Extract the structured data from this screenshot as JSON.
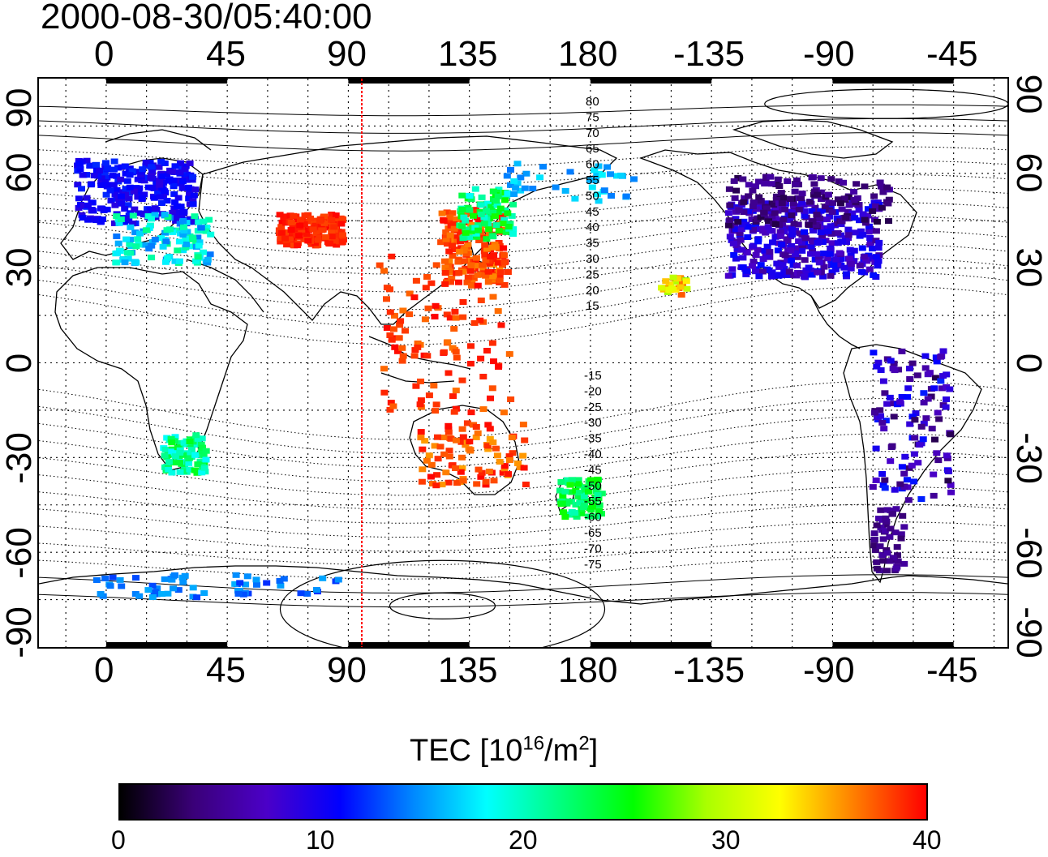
{
  "title": "2000-08-30/05:40:00",
  "x_ticks": [
    "0",
    "45",
    "90",
    "135",
    "180",
    "-135",
    "-90",
    "-45"
  ],
  "y_ticks": [
    "90",
    "60",
    "30",
    "0",
    "-30",
    "-60",
    "-90"
  ],
  "colorbar": {
    "label_prefix": "TEC  [10",
    "label_sup1": "16",
    "label_mid": "/m",
    "label_sup2": "2",
    "label_suffix": "]",
    "ticks": [
      "0",
      "10",
      "20",
      "30",
      "40"
    ],
    "colors": [
      "#000000",
      "#3a0078",
      "#4b00c8",
      "#0000ff",
      "#0088ff",
      "#00ffff",
      "#00ff80",
      "#00ff00",
      "#aaff00",
      "#ffff00",
      "#ff8000",
      "#ff0000"
    ]
  },
  "mlat_labels_north": [
    "80",
    "75",
    "70",
    "65",
    "60",
    "55",
    "50",
    "45",
    "40",
    "35",
    "30",
    "25",
    "20",
    "15"
  ],
  "mlat_labels_south": [
    "-15",
    "-20",
    "-25",
    "-30",
    "-35",
    "-40",
    "-45",
    "-50",
    "-55",
    "-60",
    "-65",
    "-70",
    "-75"
  ],
  "terminator_longitude": 95,
  "lon_range": [
    -25,
    335
  ],
  "lat_range": [
    -90,
    90
  ]
}
